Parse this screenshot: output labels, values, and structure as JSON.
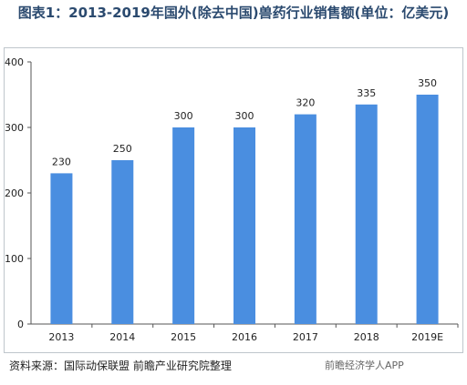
{
  "title": "图表1：2013-2019年国外(除去中国)兽药行业销售额(单位：亿美元)",
  "source": "资料来源：国际动保联盟 前瞻产业研究院整理",
  "watermark": "前瞻经济学人APP",
  "colors": {
    "bar": "#4a8ee0",
    "axis": "#555555",
    "grid": "#d9d9d9"
  },
  "chart_data": {
    "type": "bar",
    "categories": [
      "2013",
      "2014",
      "2015",
      "2016",
      "2017",
      "2018",
      "2019E"
    ],
    "values": [
      230,
      250,
      300,
      300,
      320,
      335,
      350
    ],
    "data_labels": [
      "230",
      "250",
      "300",
      "300",
      "320",
      "335",
      "350"
    ],
    "title": "图表1：2013-2019年国外(除去中国)兽药行业销售额(单位：亿美元)",
    "xlabel": "",
    "ylabel": "",
    "ylim": [
      0,
      400
    ],
    "yticks": [
      "0",
      "100",
      "200",
      "300",
      "400"
    ],
    "grid": false,
    "legend": "none"
  }
}
